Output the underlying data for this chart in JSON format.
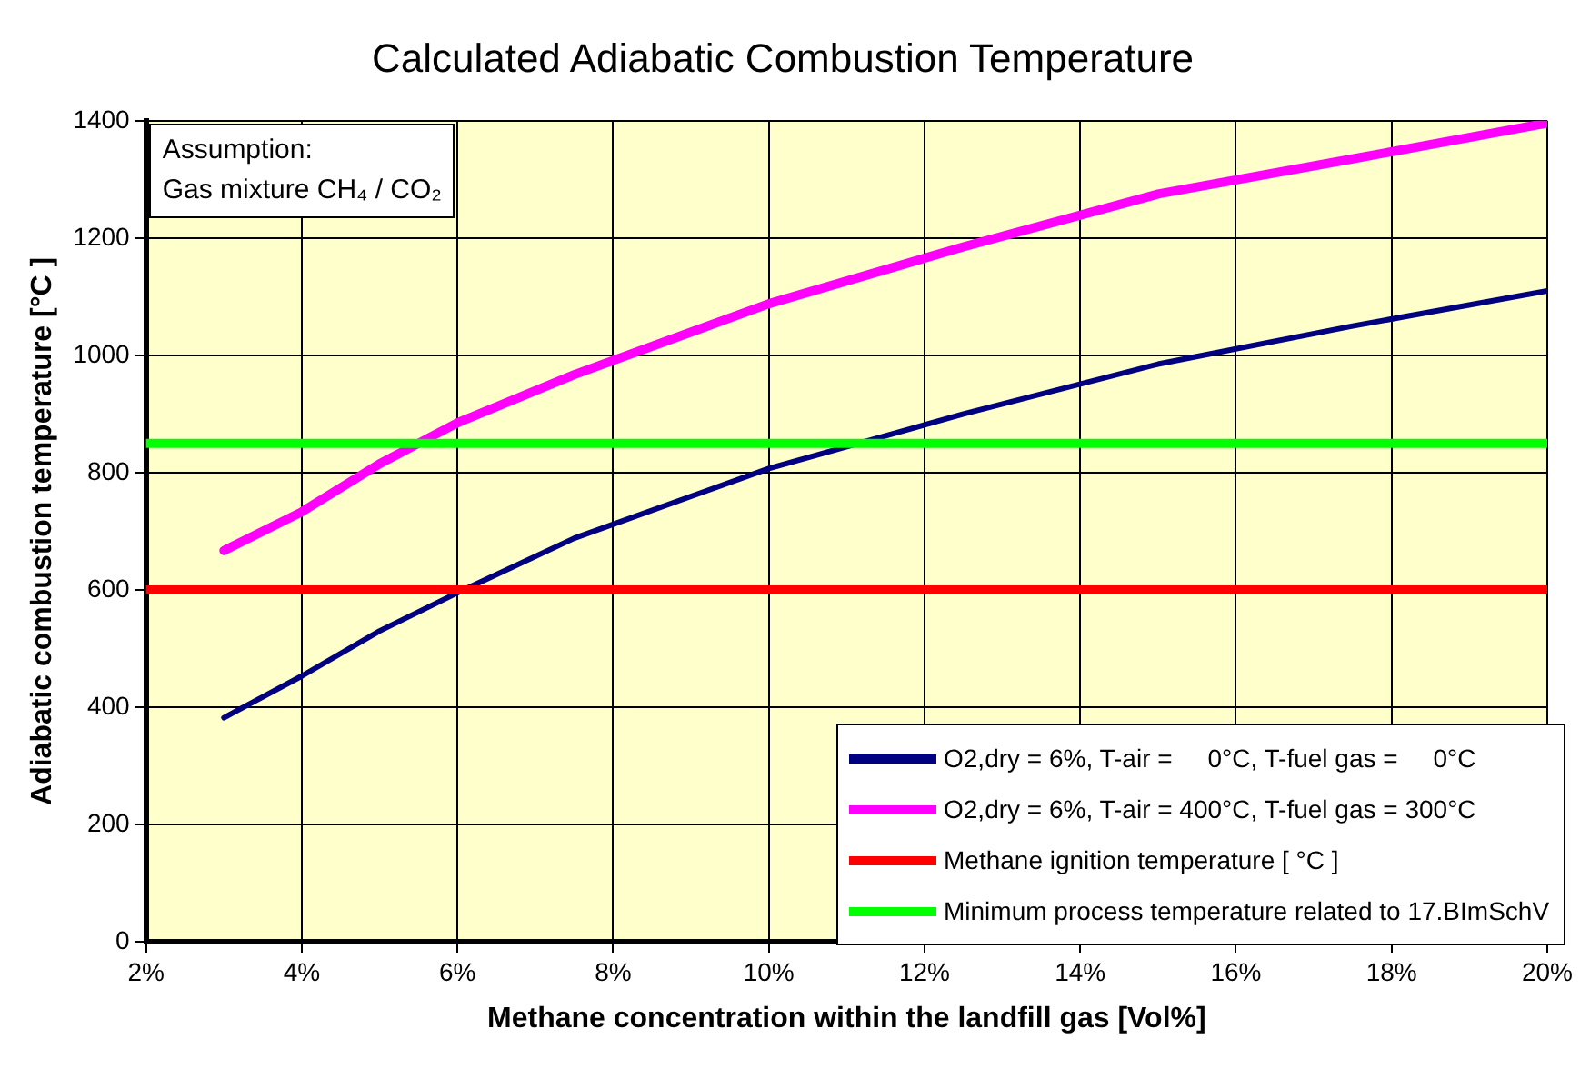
{
  "chart_data": {
    "type": "line",
    "title": "Calculated Adiabatic Combustion Temperature",
    "xlabel": "Methane concentration within the landfill gas [Vol%]",
    "ylabel": "Adiabatic combustion temperature [°C ]",
    "x": [
      3,
      4,
      5,
      6,
      7.5,
      10,
      12.5,
      15,
      17.5,
      20
    ],
    "series": [
      {
        "name": "O2,dry = 6%, T-air =     0°C, T-fuel gas =     0°C",
        "color": "#000080",
        "values": [
          382,
          453,
          530,
          595,
          688,
          807,
          900,
          985,
          1050,
          1110
        ]
      },
      {
        "name": "O2,dry = 6%, T-air = 400°C, T-fuel gas = 300°C",
        "color": "#ff00ff",
        "values": [
          667,
          733,
          815,
          885,
          967,
          1088,
          1185,
          1275,
          1335,
          1396
        ]
      }
    ],
    "ref_lines": [
      {
        "axis": "y",
        "value": 600,
        "label": "Methane ignition temperature [ °C ]",
        "color": "#ff0000"
      },
      {
        "axis": "y",
        "value": 850,
        "label": "Minimum process temperature related to 17.BImSchV",
        "color": "#00ff00"
      }
    ],
    "xlim": [
      2,
      20
    ],
    "xticks": [
      {
        "value": 2,
        "label": "2%"
      },
      {
        "value": 4,
        "label": "4%"
      },
      {
        "value": 6,
        "label": "6%"
      },
      {
        "value": 8,
        "label": "8%"
      },
      {
        "value": 10,
        "label": "10%"
      },
      {
        "value": 12,
        "label": "12%"
      },
      {
        "value": 14,
        "label": "14%"
      },
      {
        "value": 16,
        "label": "16%"
      },
      {
        "value": 18,
        "label": "18%"
      },
      {
        "value": 20,
        "label": "20%"
      }
    ],
    "ylim": [
      0,
      1400
    ],
    "yticks": [
      0,
      200,
      400,
      600,
      800,
      1000,
      1200,
      1400
    ],
    "grid": true,
    "legend": "bottom right",
    "marker": "none",
    "line_style": "solid",
    "annotations": [
      "Assumption:\nGas mixture CH₄ / CO₂"
    ]
  }
}
